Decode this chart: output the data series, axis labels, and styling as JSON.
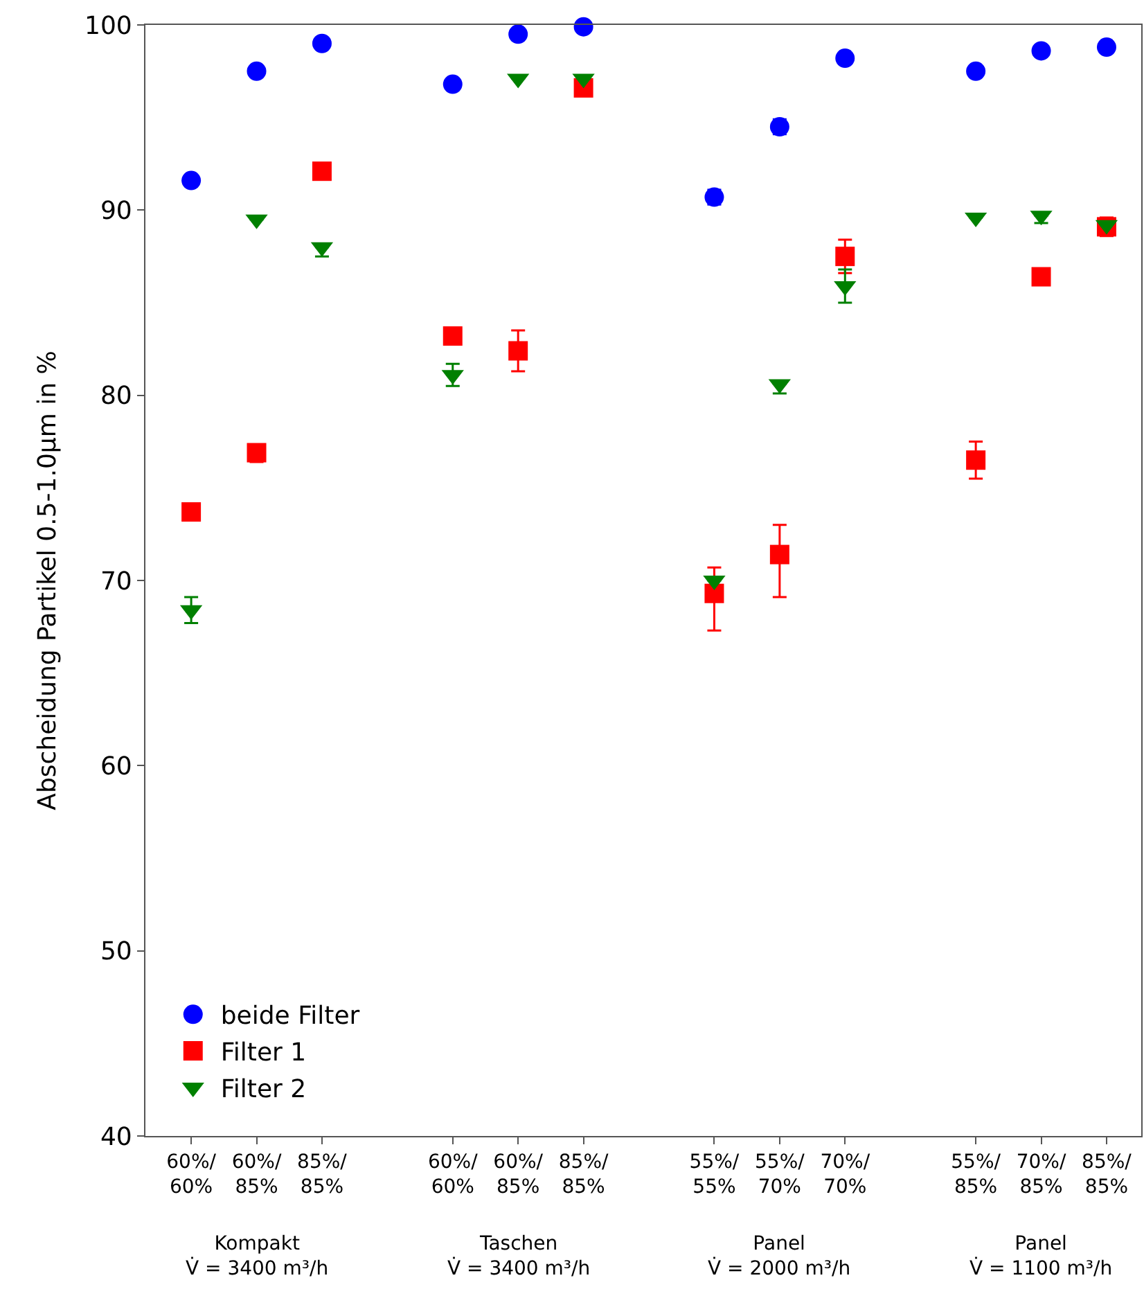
{
  "chart_data": {
    "type": "scatter",
    "ylabel": "Abscheidung Partikel 0.5-1.0μm in %",
    "categories": [
      "60%/\n60%",
      "60%/\n85%",
      "85%/\n85%",
      null,
      "60%/\n60%",
      "60%/\n85%",
      "85%/\n85%",
      null,
      "55%/\n55%",
      "55%/\n70%",
      "70%/\n70%",
      null,
      "55%/\n85%",
      "70%/\n85%",
      "85%/\n85%"
    ],
    "series": [
      {
        "name": "beide Filter",
        "color": "#0000ff",
        "marker": "circle",
        "values": [
          91.6,
          97.5,
          99.0,
          null,
          96.8,
          99.5,
          99.9,
          null,
          90.7,
          94.5,
          98.2,
          null,
          97.5,
          98.6,
          98.8
        ],
        "errors": [
          null,
          null,
          null,
          null,
          null,
          null,
          null,
          null,
          0.4,
          0.4,
          null,
          null,
          null,
          null,
          null
        ]
      },
      {
        "name": "Filter 1",
        "color": "#ff0000",
        "marker": "square",
        "values": [
          73.7,
          76.9,
          92.1,
          null,
          83.2,
          82.4,
          96.6,
          null,
          69.3,
          71.4,
          87.5,
          null,
          76.5,
          86.4,
          89.1
        ],
        "errors": [
          null,
          [
            76.4,
            76.9
          ],
          null,
          null,
          null,
          1.1,
          null,
          null,
          [
            67.3,
            70.7
          ],
          [
            69.1,
            73.0
          ],
          0.9,
          null,
          1.0,
          null,
          0.5
        ]
      },
      {
        "name": "Filter 2",
        "color": "#008000",
        "marker": "triangle-down",
        "values": [
          68.4,
          89.5,
          88.0,
          null,
          81.1,
          97.1,
          97.1,
          null,
          70.0,
          80.6,
          85.9,
          null,
          89.6,
          89.7,
          89.2
        ],
        "errors": [
          0.7,
          null,
          [
            87.5,
            88.0
          ],
          null,
          0.6,
          null,
          null,
          null,
          null,
          [
            80.1,
            80.6
          ],
          0.9,
          null,
          null,
          [
            89.3,
            89.7
          ],
          null
        ]
      }
    ],
    "ylim": [
      40,
      100
    ],
    "yticks": [
      40,
      50,
      60,
      70,
      80,
      90,
      100
    ],
    "legend": "bottom left",
    "annotations": [
      "Kompakt\nV̇ = 3400 m³/h",
      "Taschen\nV̇ = 3400 m³/h",
      "Panel\nV̇ = 2000 m³/h",
      "Panel\nV̇ = 1100 m³/h"
    ]
  }
}
